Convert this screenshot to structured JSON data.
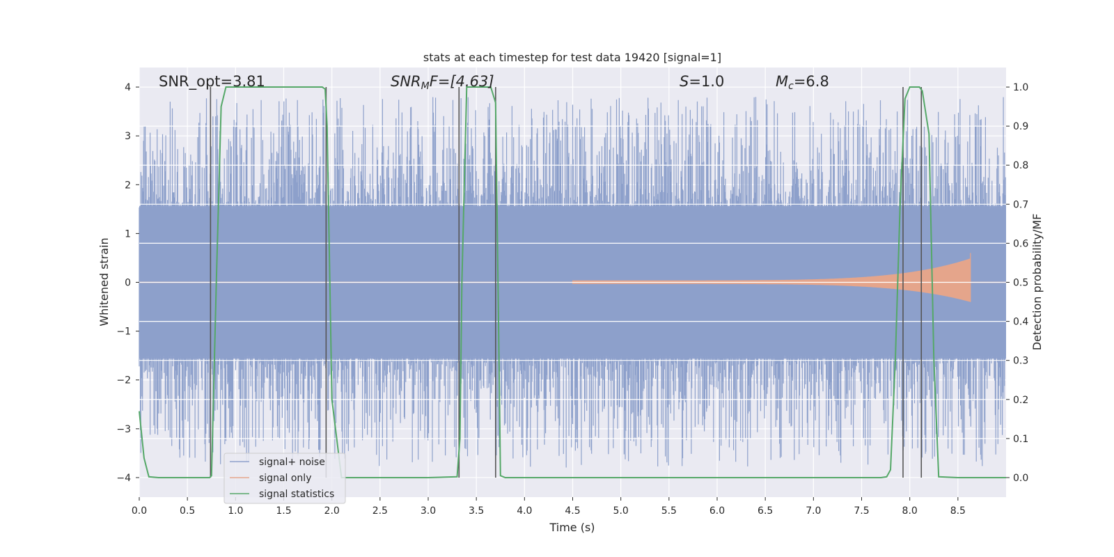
{
  "chart_data": {
    "type": "line",
    "title": "stats at each timestep for test data 19420 [signal=1]",
    "xlabel": "Time (s)",
    "ylabel_left": "Whitened strain",
    "ylabel_right": "Detection probability/MF",
    "xlim": [
      0.0,
      9.0
    ],
    "ylim_left": [
      -4.4,
      4.4
    ],
    "ylim_right": [
      -0.05,
      1.05
    ],
    "xticks": [
      "0.0",
      "0.5",
      "1.0",
      "1.5",
      "2.0",
      "2.5",
      "3.0",
      "3.5",
      "4.0",
      "4.5",
      "5.0",
      "5.5",
      "6.0",
      "6.5",
      "7.0",
      "7.5",
      "8.0",
      "8.5"
    ],
    "xtick_values": [
      0.0,
      0.5,
      1.0,
      1.5,
      2.0,
      2.5,
      3.0,
      3.5,
      4.0,
      4.5,
      5.0,
      5.5,
      6.0,
      6.5,
      7.0,
      7.5,
      8.0,
      8.5
    ],
    "yticks_left": [
      "4",
      "3",
      "2",
      "1",
      "0",
      "−1",
      "−2",
      "−3",
      "−4"
    ],
    "ytick_values_left": [
      4,
      3,
      2,
      1,
      0,
      -1,
      -2,
      -3,
      -4
    ],
    "yticks_right": [
      "1.0",
      "0.9",
      "0.8",
      "0.7",
      "0.6",
      "0.5",
      "0.4",
      "0.3",
      "0.2",
      "0.1",
      "0.0"
    ],
    "ytick_values_right": [
      1.0,
      0.9,
      0.8,
      0.7,
      0.6,
      0.5,
      0.4,
      0.3,
      0.2,
      0.1,
      0.0
    ],
    "grid": true,
    "legend_placement": "lower-left",
    "annotations": {
      "snr_opt": "SNR_opt=3.81",
      "snr_mf": "SNR",
      "snr_mf_sub": "M",
      "snr_mf_tail": "F=[4.63]",
      "s_label": "S",
      "s_value": "=1.0",
      "mc_label": "M",
      "mc_sub": "c",
      "mc_value": "=6.8"
    },
    "series": [
      {
        "name": "signal+ noise",
        "color": "#8da0cb",
        "envelope_description": "dense noise band",
        "typical_amplitude": 1.7,
        "max_amplitude": 4.0
      },
      {
        "name": "signal only",
        "color": "#e5a58b",
        "chirp_start": 4.5,
        "chirp_end": 8.63,
        "chirp_peak_amplitude": 0.6
      },
      {
        "name": "signal statistics",
        "color": "#55a868",
        "x": [
          0.0,
          0.05,
          0.1,
          0.2,
          0.73,
          0.75,
          0.8,
          0.85,
          0.9,
          1.0,
          1.5,
          1.9,
          1.93,
          1.95,
          2.0,
          2.1,
          2.5,
          3.0,
          3.3,
          3.33,
          3.35,
          3.4,
          3.5,
          3.65,
          3.7,
          3.73,
          3.75,
          3.8,
          4.0,
          5.0,
          6.0,
          7.0,
          7.7,
          7.76,
          7.8,
          7.85,
          7.9,
          7.95,
          8.0,
          8.05,
          8.1,
          8.13,
          8.2,
          8.25,
          8.3,
          8.5,
          9.0
        ],
        "y": [
          0.17,
          0.05,
          0.002,
          0.0,
          0.0,
          0.005,
          0.5,
          0.95,
          1.0,
          1.0,
          1.0,
          1.0,
          0.995,
          0.9,
          0.2,
          0.0,
          0.0,
          0.0,
          0.002,
          0.1,
          0.5,
          1.0,
          1.0,
          1.0,
          0.96,
          0.4,
          0.005,
          0.0,
          0.0,
          0.0,
          0.0,
          0.0,
          0.0,
          0.002,
          0.02,
          0.3,
          0.7,
          0.97,
          1.0,
          1.0,
          1.0,
          0.99,
          0.88,
          0.3,
          0.002,
          0.0,
          0.0
        ]
      }
    ],
    "vertical_markers": [
      0.74,
      1.94,
      3.32,
      3.7,
      7.93,
      8.12
    ],
    "marker_color": "#555555"
  }
}
